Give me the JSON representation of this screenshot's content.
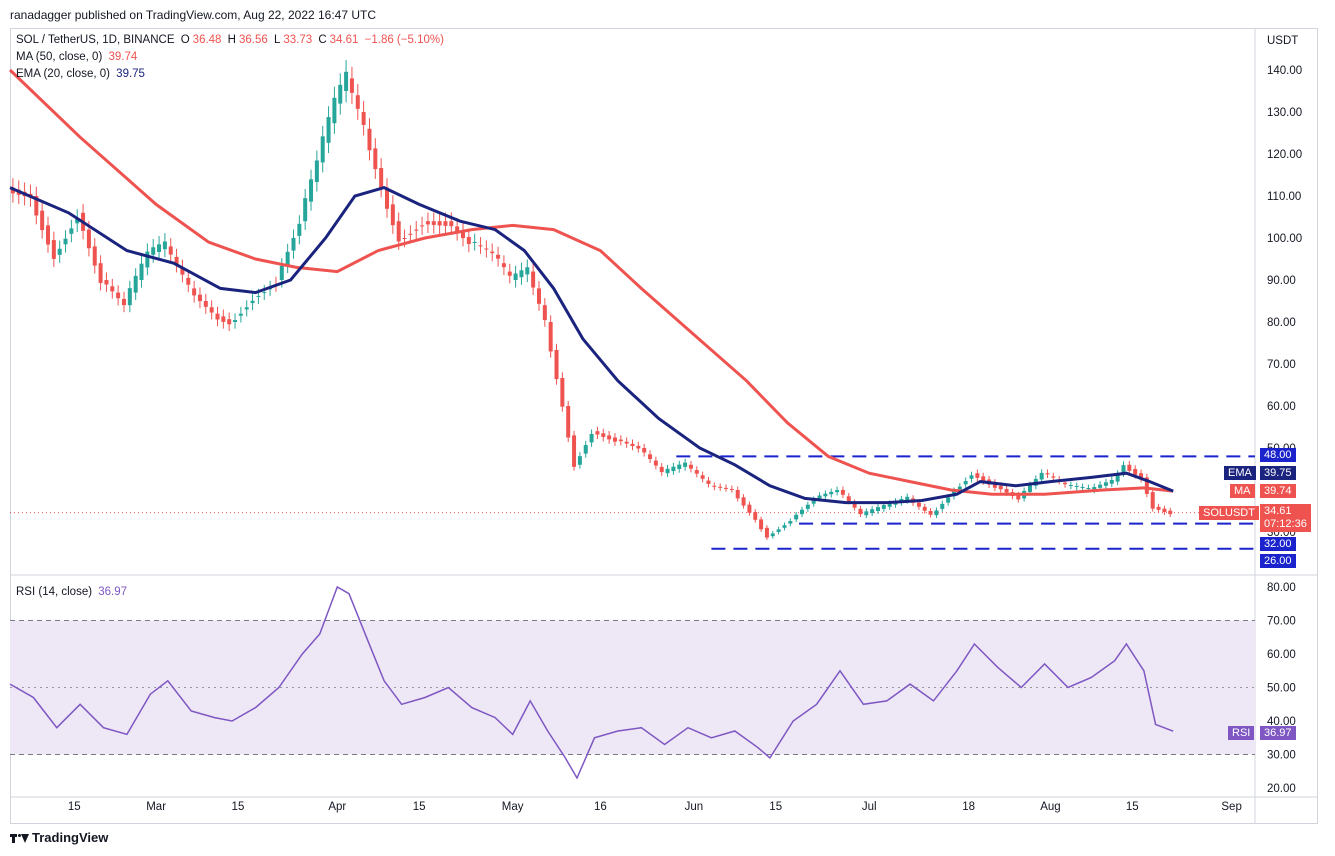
{
  "header": {
    "publisher": "ranadagger published on TradingView.com, Aug 22, 2022 16:47 UTC"
  },
  "legend": {
    "symbol": "SOL / TetherUS, 1D, BINANCE",
    "o_label": "O",
    "o": "36.48",
    "h_label": "H",
    "h": "36.56",
    "l_label": "L",
    "l": "33.73",
    "c_label": "C",
    "c": "34.61",
    "change": "−1.86 (−5.10%)",
    "ma_label": "MA (50, close, 0)",
    "ma_value": "39.74",
    "ema_label": "EMA (20, close, 0)",
    "ema_value": "39.75",
    "rsi_label": "RSI (14, close)",
    "rsi_value": "36.97"
  },
  "axis": {
    "currency": "USDT",
    "price_ticks": [
      "140.00",
      "130.00",
      "120.00",
      "110.00",
      "100.00",
      "90.00",
      "80.00",
      "70.00",
      "60.00",
      "50.00",
      "40.00",
      "30.00",
      "20.00"
    ],
    "rsi_ticks": [
      "80.00",
      "70.00",
      "60.00",
      "50.00",
      "40.00",
      "30.00",
      "20.00"
    ],
    "time_ticks": [
      "15",
      "Mar",
      "15",
      "Apr",
      "15",
      "May",
      "16",
      "Jun",
      "15",
      "Jul",
      "18",
      "Aug",
      "15",
      "Sep"
    ]
  },
  "tags": {
    "level_48": "48.00",
    "level_32": "32.00",
    "level_26": "26.00",
    "ema_label": "EMA",
    "ema_value": "39.75",
    "ma_label": "MA",
    "ma_value": "39.74",
    "sym_label": "SOLUSDT",
    "price": "34.61",
    "countdown": "07:12:36",
    "rsi_label": "RSI",
    "rsi_value": "36.97"
  },
  "footer": {
    "brand": "TradingView"
  },
  "colors": {
    "up": "#26a69a",
    "down": "#ef5350",
    "ema": "#1a237e",
    "ma": "#ef5350",
    "rsi": "#7e57c2",
    "rsi_band": "#ede7f6",
    "levels": "#1a23cc"
  },
  "chart_data": {
    "type": "line",
    "title": "SOL / TetherUS, 1D, BINANCE",
    "ylabel": "USDT",
    "ylim": [
      20,
      145
    ],
    "x_range": [
      "2022-02-04",
      "2022-09-05"
    ],
    "price_close": {
      "name": "SOL / TetherUS",
      "points": [
        [
          "2022-02-04",
          112
        ],
        [
          "2022-02-08",
          110
        ],
        [
          "2022-02-12",
          96
        ],
        [
          "2022-02-16",
          106
        ],
        [
          "2022-02-20",
          90
        ],
        [
          "2022-02-24",
          84
        ],
        [
          "2022-02-28",
          96
        ],
        [
          "2022-03-03",
          98
        ],
        [
          "2022-03-07",
          88
        ],
        [
          "2022-03-11",
          82
        ],
        [
          "2022-03-14",
          80
        ],
        [
          "2022-03-18",
          86
        ],
        [
          "2022-03-22",
          90
        ],
        [
          "2022-03-26",
          104
        ],
        [
          "2022-03-29",
          118
        ],
        [
          "2022-04-01",
          132
        ],
        [
          "2022-04-03",
          138
        ],
        [
          "2022-04-06",
          126
        ],
        [
          "2022-04-09",
          112
        ],
        [
          "2022-04-12",
          100
        ],
        [
          "2022-04-16",
          104
        ],
        [
          "2022-04-20",
          104
        ],
        [
          "2022-04-24",
          99
        ],
        [
          "2022-04-28",
          96
        ],
        [
          "2022-05-01",
          90
        ],
        [
          "2022-05-04",
          92
        ],
        [
          "2022-05-07",
          80
        ],
        [
          "2022-05-10",
          60
        ],
        [
          "2022-05-12",
          46
        ],
        [
          "2022-05-15",
          54
        ],
        [
          "2022-05-19",
          52
        ],
        [
          "2022-05-23",
          50
        ],
        [
          "2022-05-27",
          44
        ],
        [
          "2022-05-31",
          46
        ],
        [
          "2022-06-04",
          41
        ],
        [
          "2022-06-08",
          40
        ],
        [
          "2022-06-12",
          33
        ],
        [
          "2022-06-14",
          29
        ],
        [
          "2022-06-18",
          33
        ],
        [
          "2022-06-22",
          38
        ],
        [
          "2022-06-26",
          40
        ],
        [
          "2022-06-30",
          34
        ],
        [
          "2022-07-04",
          36
        ],
        [
          "2022-07-08",
          38
        ],
        [
          "2022-07-12",
          34
        ],
        [
          "2022-07-16",
          40
        ],
        [
          "2022-07-19",
          44
        ],
        [
          "2022-07-23",
          41
        ],
        [
          "2022-07-27",
          38
        ],
        [
          "2022-07-31",
          44
        ],
        [
          "2022-08-04",
          41
        ],
        [
          "2022-08-08",
          40
        ],
        [
          "2022-08-12",
          42
        ],
        [
          "2022-08-14",
          46
        ],
        [
          "2022-08-17",
          43
        ],
        [
          "2022-08-19",
          36
        ],
        [
          "2022-08-22",
          34.61
        ]
      ]
    },
    "ma50": {
      "name": "MA (50, close, 0)",
      "points": [
        [
          "2022-02-04",
          140
        ],
        [
          "2022-02-16",
          124
        ],
        [
          "2022-03-01",
          108
        ],
        [
          "2022-03-10",
          99
        ],
        [
          "2022-03-18",
          95
        ],
        [
          "2022-03-25",
          93
        ],
        [
          "2022-04-01",
          92
        ],
        [
          "2022-04-08",
          97
        ],
        [
          "2022-04-16",
          100
        ],
        [
          "2022-04-24",
          102
        ],
        [
          "2022-05-01",
          103
        ],
        [
          "2022-05-08",
          102
        ],
        [
          "2022-05-16",
          97
        ],
        [
          "2022-05-23",
          88
        ],
        [
          "2022-06-01",
          77
        ],
        [
          "2022-06-10",
          66
        ],
        [
          "2022-06-17",
          56
        ],
        [
          "2022-06-24",
          48
        ],
        [
          "2022-07-01",
          44
        ],
        [
          "2022-07-08",
          42
        ],
        [
          "2022-07-15",
          40
        ],
        [
          "2022-07-22",
          39
        ],
        [
          "2022-07-31",
          39
        ],
        [
          "2022-08-10",
          40
        ],
        [
          "2022-08-17",
          40.5
        ],
        [
          "2022-08-22",
          39.74
        ]
      ]
    },
    "ema20": {
      "name": "EMA (20, close, 0)",
      "points": [
        [
          "2022-02-04",
          112
        ],
        [
          "2022-02-14",
          106
        ],
        [
          "2022-02-24",
          97
        ],
        [
          "2022-03-04",
          94
        ],
        [
          "2022-03-12",
          88
        ],
        [
          "2022-03-18",
          87
        ],
        [
          "2022-03-24",
          90
        ],
        [
          "2022-03-30",
          100
        ],
        [
          "2022-04-04",
          110
        ],
        [
          "2022-04-09",
          112
        ],
        [
          "2022-04-15",
          108
        ],
        [
          "2022-04-22",
          104
        ],
        [
          "2022-04-28",
          102
        ],
        [
          "2022-05-03",
          97
        ],
        [
          "2022-05-08",
          88
        ],
        [
          "2022-05-13",
          76
        ],
        [
          "2022-05-19",
          66
        ],
        [
          "2022-05-26",
          57
        ],
        [
          "2022-06-02",
          50
        ],
        [
          "2022-06-08",
          46
        ],
        [
          "2022-06-14",
          41
        ],
        [
          "2022-06-20",
          38
        ],
        [
          "2022-06-27",
          37
        ],
        [
          "2022-07-04",
          37
        ],
        [
          "2022-07-10",
          37.5
        ],
        [
          "2022-07-16",
          39
        ],
        [
          "2022-07-20",
          42
        ],
        [
          "2022-07-26",
          41
        ],
        [
          "2022-08-01",
          42
        ],
        [
          "2022-08-08",
          43
        ],
        [
          "2022-08-14",
          44
        ],
        [
          "2022-08-18",
          42
        ],
        [
          "2022-08-22",
          39.75
        ]
      ]
    },
    "levels": [
      {
        "value": 48,
        "from": "2022-05-29",
        "to": "2022-09-05"
      },
      {
        "value": 32,
        "from": "2022-06-19",
        "to": "2022-09-05"
      },
      {
        "value": 26,
        "from": "2022-06-04",
        "to": "2022-09-05"
      }
    ],
    "rsi": {
      "name": "RSI (14, close)",
      "ylim": [
        20,
        80
      ],
      "band": [
        30,
        70
      ],
      "points": [
        [
          "2022-02-04",
          51
        ],
        [
          "2022-02-08",
          47
        ],
        [
          "2022-02-12",
          38
        ],
        [
          "2022-02-16",
          45
        ],
        [
          "2022-02-20",
          38
        ],
        [
          "2022-02-24",
          36
        ],
        [
          "2022-02-28",
          48
        ],
        [
          "2022-03-03",
          52
        ],
        [
          "2022-03-07",
          43
        ],
        [
          "2022-03-11",
          41
        ],
        [
          "2022-03-14",
          40
        ],
        [
          "2022-03-18",
          44
        ],
        [
          "2022-03-22",
          50
        ],
        [
          "2022-03-26",
          60
        ],
        [
          "2022-03-29",
          66
        ],
        [
          "2022-04-01",
          80
        ],
        [
          "2022-04-03",
          78
        ],
        [
          "2022-04-06",
          65
        ],
        [
          "2022-04-09",
          52
        ],
        [
          "2022-04-12",
          45
        ],
        [
          "2022-04-16",
          47
        ],
        [
          "2022-04-20",
          50
        ],
        [
          "2022-04-24",
          44
        ],
        [
          "2022-04-28",
          41
        ],
        [
          "2022-05-01",
          36
        ],
        [
          "2022-05-04",
          46
        ],
        [
          "2022-05-07",
          37
        ],
        [
          "2022-05-10",
          29
        ],
        [
          "2022-05-12",
          23
        ],
        [
          "2022-05-15",
          35
        ],
        [
          "2022-05-19",
          37
        ],
        [
          "2022-05-23",
          38
        ],
        [
          "2022-05-27",
          33
        ],
        [
          "2022-05-31",
          38
        ],
        [
          "2022-06-04",
          35
        ],
        [
          "2022-06-08",
          37
        ],
        [
          "2022-06-12",
          32
        ],
        [
          "2022-06-14",
          29
        ],
        [
          "2022-06-18",
          40
        ],
        [
          "2022-06-22",
          45
        ],
        [
          "2022-06-26",
          55
        ],
        [
          "2022-06-30",
          45
        ],
        [
          "2022-07-04",
          46
        ],
        [
          "2022-07-08",
          51
        ],
        [
          "2022-07-12",
          46
        ],
        [
          "2022-07-16",
          55
        ],
        [
          "2022-07-19",
          63
        ],
        [
          "2022-07-23",
          56
        ],
        [
          "2022-07-27",
          50
        ],
        [
          "2022-07-31",
          57
        ],
        [
          "2022-08-04",
          50
        ],
        [
          "2022-08-08",
          53
        ],
        [
          "2022-08-12",
          58
        ],
        [
          "2022-08-14",
          63
        ],
        [
          "2022-08-17",
          55
        ],
        [
          "2022-08-19",
          39
        ],
        [
          "2022-08-22",
          36.97
        ]
      ]
    }
  }
}
